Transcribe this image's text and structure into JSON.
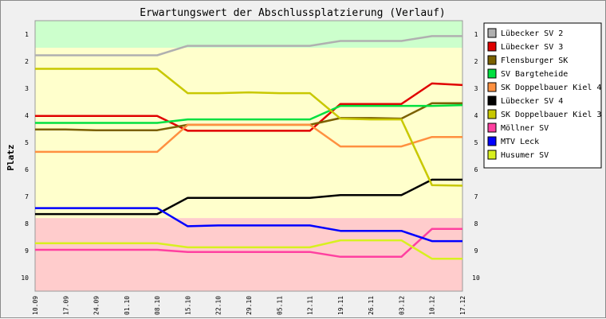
{
  "chart_data": {
    "type": "line",
    "title": "Erwartungswert der Abschlussplatzierung (Verlauf)",
    "ylabel": "Platz",
    "xlabel": "",
    "ylim": [
      0.5,
      10.5
    ],
    "y_inverted": true,
    "y_ticks": [
      1,
      2,
      3,
      4,
      5,
      6,
      7,
      8,
      9,
      10
    ],
    "x": [
      "10.09",
      "17.09",
      "24.09",
      "01.10",
      "08.10",
      "15.10",
      "22.10",
      "29.10",
      "05.11",
      "12.11",
      "19.11",
      "26.11",
      "03.12",
      "10.12",
      "17.12"
    ],
    "legend_position": "right",
    "grid": false,
    "bands": [
      {
        "from": 0.5,
        "to": 1.5,
        "color": "#ccffcc"
      },
      {
        "from": 1.5,
        "to": 7.8,
        "color": "#ffffcc"
      },
      {
        "from": 7.8,
        "to": 10.5,
        "color": "#ffcccc"
      }
    ],
    "series": [
      {
        "name": "Lübecker SV 2",
        "color": "#b0b0b0",
        "values": [
          1.78,
          1.78,
          1.78,
          1.78,
          1.78,
          1.43,
          1.43,
          1.43,
          1.43,
          1.43,
          1.25,
          1.25,
          1.25,
          1.07,
          1.07
        ]
      },
      {
        "name": "Lübecker SV 3",
        "color": "#e00000",
        "values": [
          4.02,
          4.02,
          4.02,
          4.02,
          4.02,
          4.57,
          4.57,
          4.57,
          4.57,
          4.57,
          3.58,
          3.58,
          3.58,
          2.82,
          2.88
        ]
      },
      {
        "name": "Flensburger SK",
        "color": "#7a6000",
        "values": [
          4.52,
          4.52,
          4.55,
          4.55,
          4.55,
          4.35,
          4.35,
          4.35,
          4.35,
          4.35,
          4.1,
          4.1,
          4.12,
          3.55,
          3.55
        ]
      },
      {
        "name": "SV Bargteheide",
        "color": "#00e040",
        "values": [
          4.28,
          4.28,
          4.28,
          4.28,
          4.28,
          4.15,
          4.15,
          4.15,
          4.15,
          4.15,
          3.65,
          3.65,
          3.65,
          3.65,
          3.62
        ]
      },
      {
        "name": "SK Doppelbauer Kiel 4",
        "color": "#ff9040",
        "values": [
          5.35,
          5.35,
          5.35,
          5.35,
          5.35,
          4.35,
          4.35,
          4.35,
          4.35,
          4.35,
          5.15,
          5.15,
          5.15,
          4.8,
          4.8
        ]
      },
      {
        "name": "Lübecker SV 4",
        "color": "#000000",
        "values": [
          7.65,
          7.65,
          7.65,
          7.65,
          7.65,
          7.05,
          7.05,
          7.05,
          7.05,
          7.05,
          6.95,
          6.95,
          6.95,
          6.38,
          6.38
        ]
      },
      {
        "name": "SK Doppelbauer Kiel 3",
        "color": "#c8c800",
        "values": [
          2.28,
          2.28,
          2.28,
          2.28,
          2.28,
          3.18,
          3.18,
          3.15,
          3.18,
          3.18,
          4.12,
          4.15,
          4.15,
          6.58,
          6.6
        ]
      },
      {
        "name": "Möllner SV",
        "color": "#ff40a0",
        "values": [
          8.97,
          8.97,
          8.97,
          8.97,
          8.97,
          9.05,
          9.05,
          9.05,
          9.05,
          9.05,
          9.23,
          9.23,
          9.23,
          8.2,
          8.2
        ]
      },
      {
        "name": "MTV Leck",
        "color": "#0000ff",
        "values": [
          7.43,
          7.43,
          7.43,
          7.43,
          7.43,
          8.1,
          8.07,
          8.07,
          8.07,
          8.07,
          8.27,
          8.27,
          8.27,
          8.65,
          8.65
        ]
      },
      {
        "name": "Husumer SV",
        "color": "#d8f020",
        "values": [
          8.73,
          8.73,
          8.73,
          8.73,
          8.73,
          8.88,
          8.88,
          8.88,
          8.88,
          8.88,
          8.62,
          8.62,
          8.62,
          9.3,
          9.3
        ]
      }
    ]
  }
}
